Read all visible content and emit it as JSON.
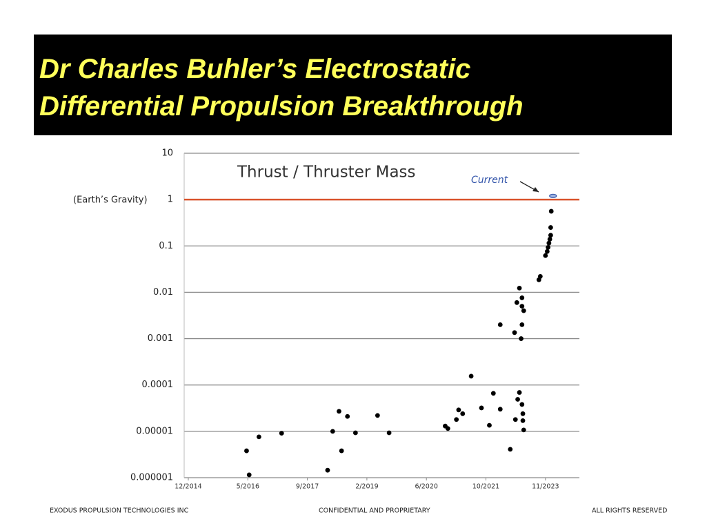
{
  "title": [
    "Dr Charles Buhler’s Electrostatic",
    "Differential Propulsion Breakthrough"
  ],
  "chart_data": {
    "type": "scatter",
    "subtitle": "Thrust / Thruster Mass",
    "y_annotation": "(Earth’s Gravity)",
    "log_y": true,
    "grid": true,
    "color": "#000000",
    "ylim": [
      1e-06,
      10
    ],
    "yticks": [
      10,
      1,
      0.1,
      0.01,
      0.001,
      0.0001,
      1e-05,
      1e-06
    ],
    "xlim": [
      2014.82,
      2025.0
    ],
    "xticks": [
      {
        "value": 2014.92,
        "label": "12/2014"
      },
      {
        "value": 2016.33,
        "label": "5/2016"
      },
      {
        "value": 2017.67,
        "label": "9/2017"
      },
      {
        "value": 2019.08,
        "label": "2/2019"
      },
      {
        "value": 2020.42,
        "label": "6/2020"
      },
      {
        "value": 2021.75,
        "label": "10/2021"
      },
      {
        "value": 2023.83,
        "label": "11/2023"
      }
    ],
    "reference_line": {
      "value": 1,
      "color": "#d9532c"
    },
    "x": [
      2016.3,
      2016.36,
      2016.58,
      2017.09,
      2018.15,
      2018.27,
      2018.42,
      2018.48,
      2018.62,
      2018.81,
      2019.32,
      2019.58,
      2020.84,
      2020.9,
      2021.09,
      2021.14,
      2021.23,
      2021.42,
      2021.65,
      2021.87,
      2022.01,
      2022.25,
      2022.25,
      2022.6,
      2022.75,
      2022.78,
      2022.83,
      2022.86,
      2022.92,
      2022.92,
      2022.98,
      2023.01,
      2023.01,
      2023.01,
      2023.07,
      2023.01,
      2023.04,
      2023.04,
      2023.07,
      2023.6,
      2023.65,
      2023.83,
      2023.89,
      2023.92,
      2023.95,
      2023.98,
      2024.01,
      2024.01,
      2024.03
    ],
    "values": [
      3.8e-06,
      1.15e-06,
      7.6e-06,
      9.1e-06,
      1.45e-06,
      1e-05,
      2.7e-05,
      3.8e-06,
      2.1e-05,
      9.3e-06,
      2.2e-05,
      9.3e-06,
      1.3e-05,
      1.15e-05,
      1.8e-05,
      2.9e-05,
      2.4e-05,
      0.000155,
      3.2e-05,
      1.35e-05,
      6.6e-05,
      0.002,
      3e-05,
      4.1e-06,
      0.00135,
      1.8e-05,
      0.006,
      4.9e-05,
      6.9e-05,
      0.0123,
      0.001,
      0.002,
      0.0076,
      0.005,
      0.004,
      3.8e-05,
      2.4e-05,
      1.7e-05,
      1.07e-05,
      0.0186,
      0.022,
      0.062,
      0.076,
      0.093,
      0.115,
      0.14,
      0.17,
      0.25,
      0.56
    ],
    "current": {
      "x": 2024.09,
      "value": 1.2,
      "label": "Current",
      "color": "#3355aa"
    }
  },
  "footer": [
    "EXODUS PROPULSION TECHNOLOGIES INC",
    "CONFIDENTIAL  AND  PROPRIETARY",
    "ALL RIGHTS RESERVED"
  ]
}
